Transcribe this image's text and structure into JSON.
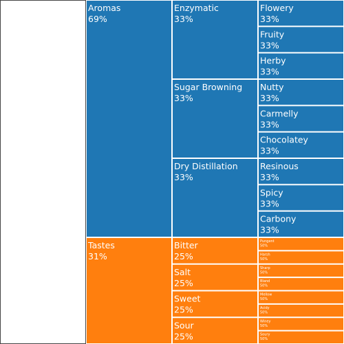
{
  "chart_data": {
    "type": "icicle",
    "colors": {
      "aromas": "#1f77b4",
      "tastes": "#ff7f0e",
      "border": "#ffffff",
      "root": "#ffffff"
    },
    "root": {
      "label": "",
      "value": 100
    },
    "groups": [
      {
        "label": "Aromas",
        "percent": "69%",
        "value": 69,
        "color_key": "aromas",
        "children": [
          {
            "label": "Enzymatic",
            "percent": "33%",
            "value": 23,
            "children": [
              {
                "label": "Flowery",
                "percent": "33%",
                "value": 7.67
              },
              {
                "label": "Fruity",
                "percent": "33%",
                "value": 7.67
              },
              {
                "label": "Herby",
                "percent": "33%",
                "value": 7.67
              }
            ]
          },
          {
            "label": "Sugar Browning",
            "percent": "33%",
            "value": 23,
            "children": [
              {
                "label": "Nutty",
                "percent": "33%",
                "value": 7.67
              },
              {
                "label": "Carmelly",
                "percent": "33%",
                "value": 7.67
              },
              {
                "label": "Chocolatey",
                "percent": "33%",
                "value": 7.67
              }
            ]
          },
          {
            "label": "Dry Distillation",
            "percent": "33%",
            "value": 23,
            "children": [
              {
                "label": "Resinous",
                "percent": "33%",
                "value": 7.67
              },
              {
                "label": "Spicy",
                "percent": "33%",
                "value": 7.67
              },
              {
                "label": "Carbony",
                "percent": "33%",
                "value": 7.67
              }
            ]
          }
        ]
      },
      {
        "label": "Tastes",
        "percent": "31%",
        "value": 31,
        "color_key": "tastes",
        "children": [
          {
            "label": "Bitter",
            "percent": "25%",
            "value": 7.75,
            "children": [
              {
                "label": "Pungent",
                "percent": "50%",
                "value": 3.875
              },
              {
                "label": "Harsh",
                "percent": "50%",
                "value": 3.875
              }
            ]
          },
          {
            "label": "Salt",
            "percent": "25%",
            "value": 7.75,
            "children": [
              {
                "label": "Sharp",
                "percent": "50%",
                "value": 3.875
              },
              {
                "label": "Bland",
                "percent": "50%",
                "value": 3.875
              }
            ]
          },
          {
            "label": "Sweet",
            "percent": "25%",
            "value": 7.75,
            "children": [
              {
                "label": "Mellow",
                "percent": "50%",
                "value": 3.875
              },
              {
                "label": "Acidy",
                "percent": "50%",
                "value": 3.875
              }
            ]
          },
          {
            "label": "Sour",
            "percent": "25%",
            "value": 7.75,
            "children": [
              {
                "label": "Winey",
                "percent": "50%",
                "value": 3.875
              },
              {
                "label": "Soury",
                "percent": "50%",
                "value": 3.875
              }
            ]
          }
        ]
      }
    ]
  }
}
